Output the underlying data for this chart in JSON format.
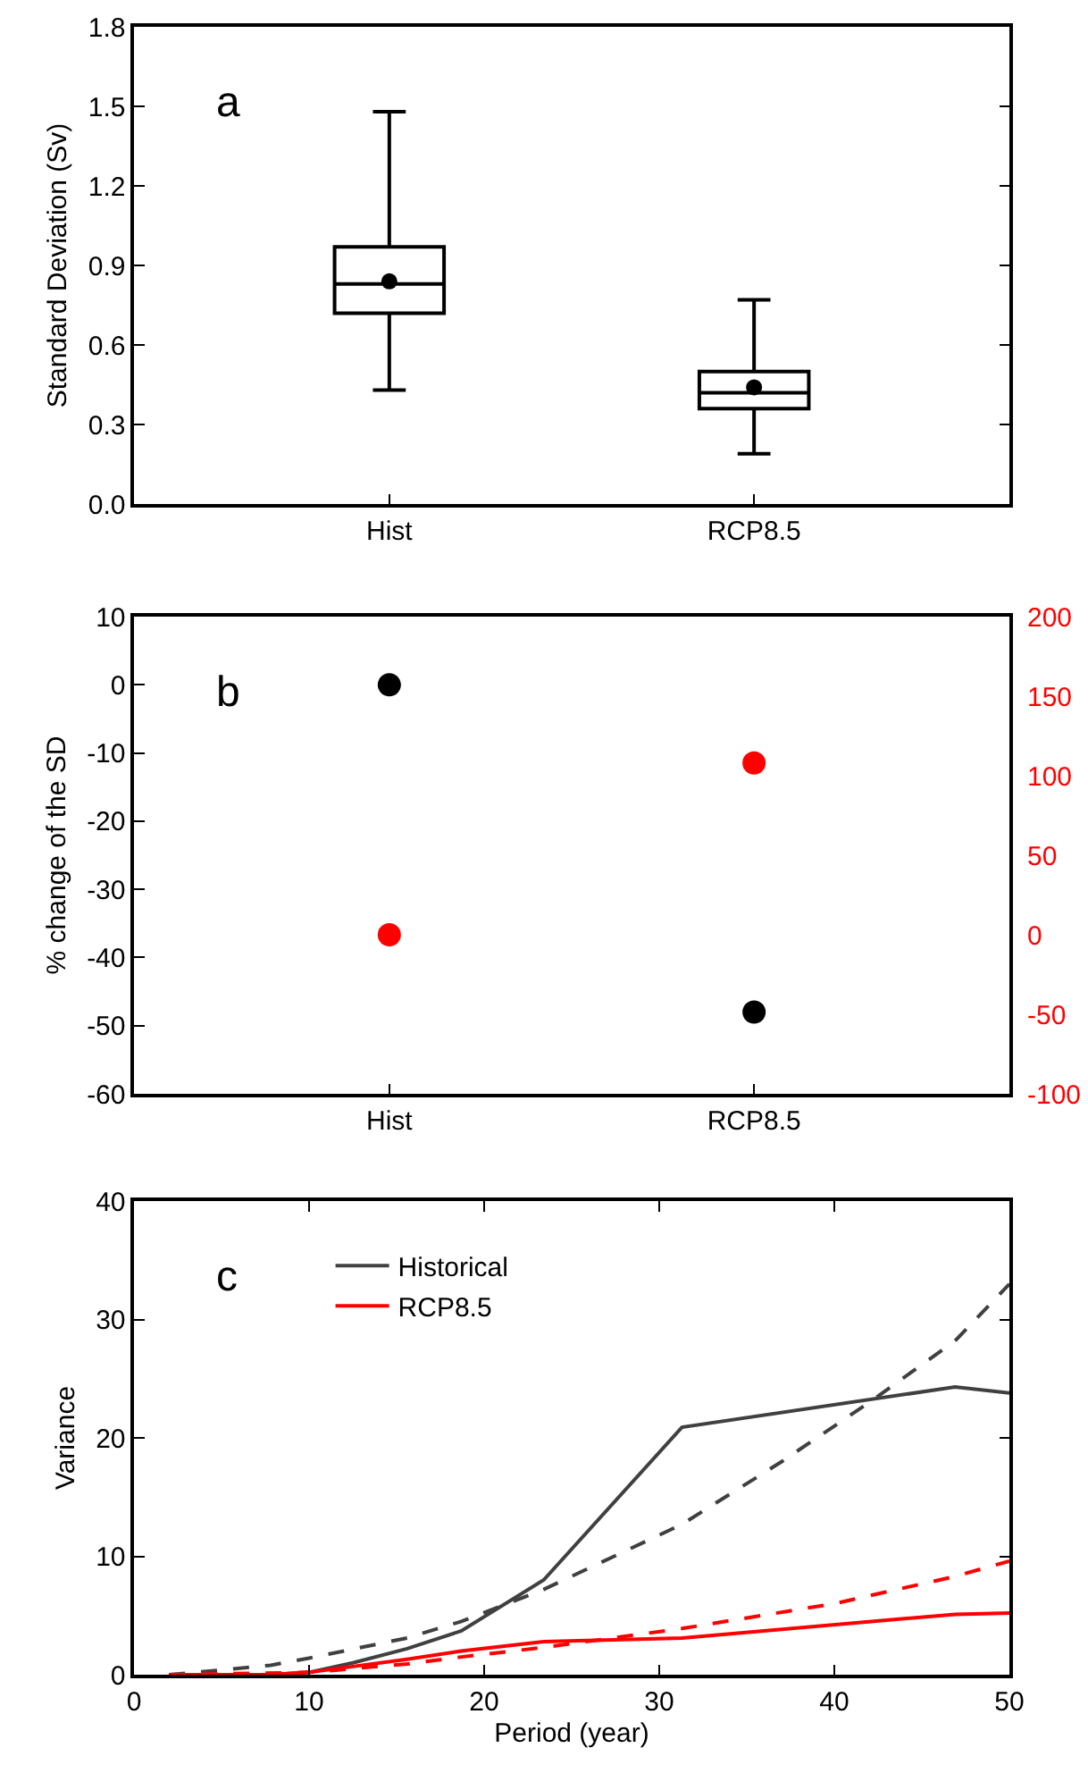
{
  "chart_data": [
    {
      "type": "box",
      "ylabel": "Standard Deviation (Sv)",
      "annotations": [
        "a"
      ],
      "categories": [
        "Hist",
        "RCP8.5"
      ],
      "ylim": [
        0,
        1.8
      ],
      "yticks": [
        {
          "value": 0,
          "label": "0.0"
        },
        0.3,
        0.6,
        0.9,
        1.2,
        1.5,
        1.8
      ],
      "boxes": [
        {
          "low": 0.43,
          "q1": 0.72,
          "median": 0.83,
          "q3": 0.97,
          "high": 1.48,
          "mean": 0.84
        },
        {
          "low": 0.19,
          "q1": 0.36,
          "median": 0.42,
          "q3": 0.5,
          "high": 0.77,
          "mean": 0.44
        }
      ],
      "color": "#000000"
    },
    {
      "type": "scatter",
      "ylabel": "% change of the SD",
      "annotations": [
        "b"
      ],
      "categories": [
        "Hist",
        "RCP8.5"
      ],
      "ylim": [
        -60,
        10
      ],
      "yticks": [
        -60,
        -50,
        -40,
        -30,
        -20,
        -10,
        0,
        10
      ],
      "y2lim": [
        -100,
        200
      ],
      "y2ticks": [
        -100,
        -50,
        0,
        50,
        100,
        150,
        200
      ],
      "marker": "circle",
      "series": [
        {
          "color": "#000000",
          "values": [
            0,
            -48
          ]
        },
        {
          "color": "#ff0000",
          "values": [
            0,
            108
          ],
          "axis": "y2"
        }
      ]
    },
    {
      "type": "line",
      "xlabel": "Period (year)",
      "ylabel": "Variance",
      "annotations": [
        "c"
      ],
      "xlim": [
        0,
        50
      ],
      "xticks": [
        0,
        10,
        20,
        30,
        40,
        50
      ],
      "ylim": [
        0,
        40
      ],
      "yticks": [
        0,
        10,
        20,
        30,
        40
      ],
      "legend": "top left",
      "series": [
        {
          "name": "Historical",
          "color": "#404040",
          "line_style": "solid",
          "x": [
            2,
            5,
            7.8,
            10,
            12.5,
            15.6,
            18.7,
            23.4,
            31.3,
            46.9,
            50
          ],
          "values": [
            0,
            0,
            0,
            0.2,
            1.0,
            2.2,
            3.7,
            8.0,
            20.9,
            24.3,
            23.8
          ]
        },
        {
          "name": "RCP8.5",
          "color": "#ff0000",
          "line_style": "solid",
          "x": [
            2,
            7.8,
            10,
            15.6,
            18.7,
            23.4,
            31.3,
            46.9,
            50
          ],
          "values": [
            0,
            0,
            0.2,
            1.3,
            2.0,
            2.8,
            3.1,
            5.1,
            5.2
          ]
        },
        {
          "color": "#404040",
          "line_style": "dashed",
          "x": [
            2,
            5,
            7.8,
            10,
            15.6,
            18.7,
            23.4,
            31.3,
            37,
            42,
            46.9,
            50
          ],
          "values": [
            0,
            0.4,
            0.8,
            1.4,
            3.1,
            4.5,
            7.2,
            12.7,
            18,
            23,
            28.2,
            33
          ]
        },
        {
          "color": "#ff0000",
          "line_style": "dashed",
          "x": [
            2,
            10,
            15.6,
            18.7,
            23.4,
            31.3,
            40,
            46.9,
            50
          ],
          "values": [
            0,
            0.2,
            0.9,
            1.5,
            2.3,
            3.9,
            6.0,
            8.3,
            9.6
          ]
        }
      ]
    }
  ]
}
